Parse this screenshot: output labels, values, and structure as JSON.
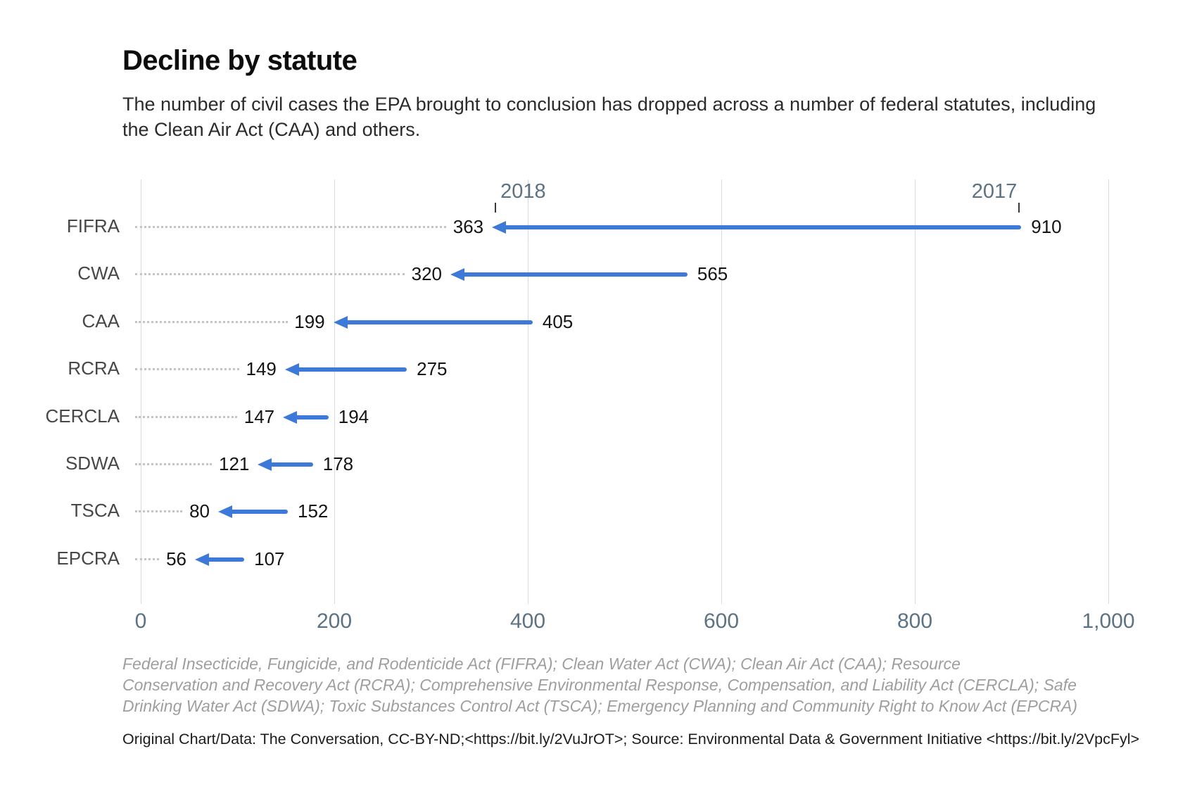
{
  "header": {
    "title": "Decline by statute",
    "subtitle": "The number of civil cases the EPA brought to conclusion has dropped across a number of federal statutes, including the Clean Air Act (CAA) and others."
  },
  "chart_data": {
    "type": "bar",
    "subtype": "directional-arrow-dumbbell",
    "title": "Decline by statute",
    "categories": [
      "FIFRA",
      "CWA",
      "CAA",
      "RCRA",
      "CERCLA",
      "SDWA",
      "TSCA",
      "EPCRA"
    ],
    "series": [
      {
        "name": "2017",
        "values": [
          910,
          565,
          405,
          275,
          194,
          178,
          152,
          107
        ]
      },
      {
        "name": "2018",
        "values": [
          363,
          320,
          199,
          149,
          147,
          121,
          80,
          56
        ]
      }
    ],
    "arrow_direction": "from 2017 value leftward to 2018 value (decline)",
    "xlabel": "",
    "ylabel": "",
    "xlim": [
      0,
      1000
    ],
    "xticks": [
      {
        "value": 0,
        "label": "0"
      },
      {
        "value": 200,
        "label": "200"
      },
      {
        "value": 400,
        "label": "400"
      },
      {
        "value": 600,
        "label": "600"
      },
      {
        "value": 800,
        "label": "800"
      },
      {
        "value": 1000,
        "label": "1,000"
      }
    ],
    "grid": "vertical-gridlines-on",
    "legend": "inline year markers above first row",
    "year_markers": [
      {
        "label": "2018",
        "anchor_category": "FIFRA",
        "anchor_value": 363,
        "align": "left"
      },
      {
        "label": "2017",
        "anchor_category": "FIFRA",
        "anchor_value": 910,
        "align": "right"
      }
    ],
    "colors": {
      "arrow": "#3d79d8",
      "axis_text": "#5b7384",
      "year_text": "#5b7384",
      "category_text": "#474747",
      "value_text": "#141414",
      "leader_dots": "#c4c4c4",
      "gridline": "#d9d9d9",
      "background": "#ffffff"
    }
  },
  "footnote": {
    "lines": [
      "Federal Insecticide, Fungicide, and Rodenticide Act (FIFRA); Clean Water Act (CWA); Clean Air Act (CAA); Resource",
      "Conservation and Recovery Act (RCRA); Comprehensive Environmental Response, Compensation, and Liability Act (CERCLA); Safe",
      "Drinking Water Act (SDWA); Toxic Substances Control Act (TSCA); Emergency Planning and Community Right to Know Act (EPCRA)"
    ]
  },
  "source": {
    "text": "Original Chart/Data: The Conversation, CC-BY-ND;<https://bit.ly/2VuJrOT>; Source: Environmental Data & Government Initiative <https://bit.ly/2VpcFyl>"
  }
}
